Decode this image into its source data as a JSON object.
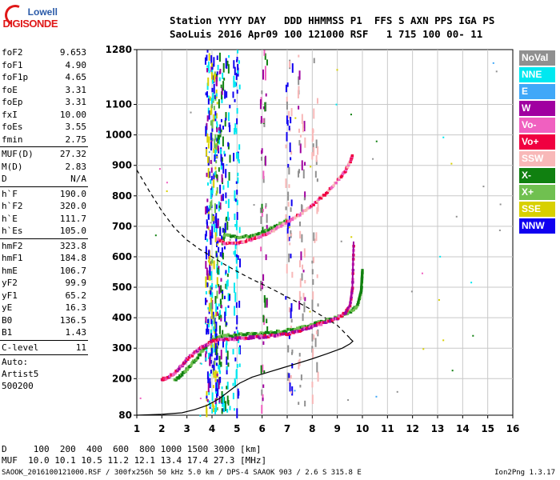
{
  "logo": {
    "line1": "Lowell",
    "line2": "DIGISONDE"
  },
  "header": {
    "row1": "Station YYYY DAY   DDD HHMMSS P1  FFS S AXN PPS IGA PS",
    "row2": "SaoLuis 2016 Apr09 100 121000 RSF   1 715 100 00- 11"
  },
  "params": [
    {
      "name": "foF2",
      "value": "9.653"
    },
    {
      "name": "foF1",
      "value": "4.90"
    },
    {
      "name": "foF1p",
      "value": "4.65"
    },
    {
      "name": "foE",
      "value": "3.31"
    },
    {
      "name": "foEp",
      "value": "3.31"
    },
    {
      "name": "fxI",
      "value": "10.00"
    },
    {
      "name": "foEs",
      "value": "3.55"
    },
    {
      "name": "fmin",
      "value": "2.75"
    },
    {
      "sep": true
    },
    {
      "name": "MUF(D)",
      "value": "27.32"
    },
    {
      "name": "M(D)",
      "value": "2.83"
    },
    {
      "name": "D",
      "value": "N/A"
    },
    {
      "sep": true
    },
    {
      "name": "h`F",
      "value": "190.0"
    },
    {
      "name": "h`F2",
      "value": "320.0"
    },
    {
      "name": "h`E",
      "value": "111.7"
    },
    {
      "name": "h`Es",
      "value": "105.0"
    },
    {
      "sep": true
    },
    {
      "name": "hmF2",
      "value": "323.8"
    },
    {
      "name": "hmF1",
      "value": "184.8"
    },
    {
      "name": "hmE",
      "value": "106.7"
    },
    {
      "name": "yF2",
      "value": "99.9"
    },
    {
      "name": "yF1",
      "value": "65.2"
    },
    {
      "name": "yE",
      "value": "16.3"
    },
    {
      "name": "B0",
      "value": "136.5"
    },
    {
      "name": "B1",
      "value": "1.43"
    },
    {
      "sep": true
    },
    {
      "name": "C-level",
      "value": "11"
    },
    {
      "sep": true
    }
  ],
  "auto": {
    "line1": "Auto:",
    "line2": "Artist5",
    "line3": "500200"
  },
  "legend": [
    {
      "label": "NoVal",
      "color": "#909090"
    },
    {
      "label": "NNE",
      "color": "#00e8f0"
    },
    {
      "label": "E",
      "color": "#40a8f8"
    },
    {
      "label": "W",
      "color": "#a000a0"
    },
    {
      "label": "Vo-",
      "color": "#f060c0"
    },
    {
      "label": "Vo+",
      "color": "#f00040"
    },
    {
      "label": "SSW",
      "color": "#f8b8b8"
    },
    {
      "label": "X-",
      "color": "#108010"
    },
    {
      "label": "X+",
      "color": "#70c050"
    },
    {
      "label": "SSE",
      "color": "#d8d000"
    },
    {
      "label": "NNW",
      "color": "#1000f0"
    }
  ],
  "footer": {
    "row1": "D     100  200  400  600  800 1000 1500 3000 [km]",
    "row2": "MUF  10.0 10.1 10.5 11.2 12.1 13.4 17.4 27.3 [MHz]",
    "row3": "SAOOK_2016100121000.RSF / 300fx256h 50 kHz 5.0 km / DPS-4 SAAOK 903 / 2.6 S 315.8 E",
    "version": "Ion2Png 1.3.17"
  },
  "chart_data": {
    "type": "scatter",
    "x_range": [
      1,
      16
    ],
    "y_range": [
      80,
      1280
    ],
    "x_ticks": [
      "1",
      "2",
      "3",
      "4",
      "5",
      "6",
      "7",
      "8",
      "9",
      "10",
      "11",
      "12",
      "13",
      "14",
      "15",
      "16"
    ],
    "y_ticks": [
      "80",
      "200",
      "300",
      "400",
      "500",
      "600",
      "700",
      "800",
      "900",
      "1000",
      "1100",
      "1280"
    ],
    "x_tick_values": [
      1,
      2,
      3,
      4,
      5,
      6,
      7,
      8,
      9,
      10,
      11,
      12,
      13,
      14,
      15,
      16
    ],
    "y_tick_values": [
      80,
      200,
      300,
      400,
      500,
      600,
      700,
      800,
      900,
      1000,
      1100,
      1280
    ],
    "axis_color": "#000000",
    "grid_color": "#c8c8c8",
    "gridlines": true,
    "profile_solid": [
      [
        1,
        80
      ],
      [
        2,
        83
      ],
      [
        2.8,
        88
      ],
      [
        3.3,
        98
      ],
      [
        3.8,
        112
      ],
      [
        4.3,
        135
      ],
      [
        4.7,
        160
      ],
      [
        5.1,
        185
      ],
      [
        5.6,
        205
      ],
      [
        6.2,
        220
      ],
      [
        6.8,
        235
      ],
      [
        7.4,
        250
      ],
      [
        8,
        265
      ],
      [
        8.6,
        282
      ],
      [
        9.2,
        300
      ],
      [
        9.5,
        314
      ],
      [
        9.62,
        323
      ],
      [
        9.5,
        332
      ]
    ],
    "profile_dashed": [
      [
        1,
        885
      ],
      [
        1.5,
        815
      ],
      [
        2,
        750
      ],
      [
        2.5,
        695
      ],
      [
        3,
        655
      ],
      [
        3.5,
        625
      ],
      [
        4,
        600
      ],
      [
        4.5,
        575
      ],
      [
        5,
        552
      ],
      [
        5.5,
        530
      ],
      [
        6,
        510
      ],
      [
        6.5,
        490
      ],
      [
        7,
        468
      ],
      [
        7.5,
        447
      ],
      [
        8,
        425
      ],
      [
        8.5,
        400
      ],
      [
        9,
        375
      ],
      [
        9.3,
        350
      ],
      [
        9.5,
        333
      ]
    ],
    "trace_o_low": [
      [
        2,
        198
      ],
      [
        2.2,
        205
      ],
      [
        2.5,
        220
      ],
      [
        2.8,
        245
      ],
      [
        3,
        265
      ],
      [
        3.3,
        285
      ],
      [
        3.6,
        305
      ],
      [
        4,
        322
      ],
      [
        4.4,
        330
      ],
      [
        5,
        332
      ],
      [
        5.5,
        335
      ],
      [
        6,
        338
      ],
      [
        6.5,
        342
      ],
      [
        7,
        348
      ],
      [
        7.5,
        358
      ],
      [
        8,
        372
      ],
      [
        8.5,
        385
      ],
      [
        9,
        400
      ],
      [
        9.3,
        415
      ],
      [
        9.5,
        440
      ],
      [
        9.6,
        500
      ],
      [
        9.65,
        650
      ]
    ],
    "trace_x_low": [
      [
        2.5,
        195
      ],
      [
        2.8,
        215
      ],
      [
        3.1,
        240
      ],
      [
        3.4,
        270
      ],
      [
        3.7,
        300
      ],
      [
        4,
        325
      ],
      [
        4.4,
        340
      ],
      [
        5,
        344
      ],
      [
        5.5,
        346
      ],
      [
        6,
        348
      ],
      [
        6.5,
        352
      ],
      [
        7,
        358
      ],
      [
        7.5,
        366
      ],
      [
        8,
        378
      ],
      [
        8.5,
        390
      ],
      [
        9,
        402
      ],
      [
        9.5,
        418
      ],
      [
        9.8,
        440
      ],
      [
        9.95,
        490
      ],
      [
        10,
        560
      ]
    ],
    "trace_o_high": [
      [
        4.2,
        660
      ],
      [
        4.5,
        645
      ],
      [
        5,
        645
      ],
      [
        5.5,
        655
      ],
      [
        6,
        670
      ],
      [
        6.5,
        690
      ],
      [
        7,
        715
      ],
      [
        7.5,
        740
      ],
      [
        8,
        770
      ],
      [
        8.5,
        805
      ],
      [
        9,
        850
      ],
      [
        9.3,
        880
      ],
      [
        9.5,
        910
      ],
      [
        9.6,
        935
      ]
    ],
    "trace_x_high": [
      [
        4.5,
        672
      ],
      [
        5,
        665
      ],
      [
        5.5,
        668
      ],
      [
        6,
        680
      ],
      [
        6.5,
        700
      ],
      [
        7,
        722
      ]
    ]
  }
}
